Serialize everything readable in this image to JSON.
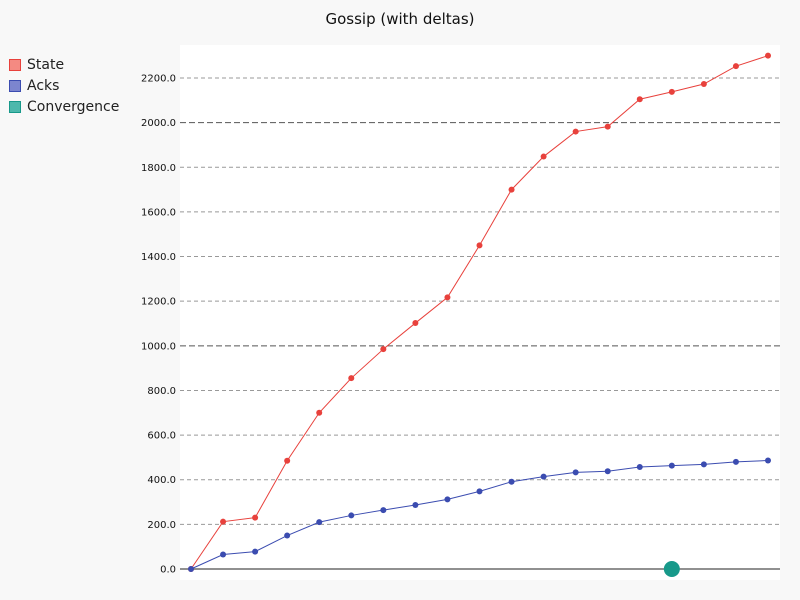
{
  "chart_data": {
    "type": "line",
    "title": "Gossip (with deltas)",
    "xlabel": "",
    "ylabel": "",
    "x": [
      0,
      1,
      2,
      3,
      4,
      5,
      6,
      7,
      8,
      9,
      10,
      11,
      12,
      13,
      14,
      15,
      16,
      17,
      18
    ],
    "ylim": [
      0,
      2350
    ],
    "yticks": [
      0,
      200,
      400,
      600,
      800,
      1000,
      1200,
      1400,
      1600,
      1800,
      2000,
      2200
    ],
    "ytick_labels": [
      "0.0",
      "200.0",
      "400.0",
      "600.0",
      "800.0",
      "1000.0",
      "1200.0",
      "1400.0",
      "1600.0",
      "1800.0",
      "2000.0",
      "2200.0"
    ],
    "major_gridlines": [
      1000,
      2000
    ],
    "legend_placement": "top-left-outside",
    "series": [
      {
        "name": "State",
        "color": "#e8413c",
        "swatch_fill": "#f48a82",
        "values": [
          0,
          212,
          230,
          485,
          700,
          855,
          985,
          1102,
          1217,
          1450,
          1700,
          1848,
          1960,
          1982,
          2105,
          2138,
          2173,
          2253,
          2300
        ]
      },
      {
        "name": "Acks",
        "color": "#3b4cb0",
        "swatch_fill": "#7c85cf",
        "values": [
          0,
          65,
          78,
          150,
          210,
          240,
          264,
          287,
          312,
          348,
          391,
          414,
          433,
          438,
          457,
          463,
          469,
          480,
          486
        ]
      },
      {
        "name": "Convergence",
        "color": "#17998a",
        "swatch_fill": "#4db8ac",
        "points": [
          {
            "x": 15,
            "y": 0
          }
        ]
      }
    ]
  }
}
